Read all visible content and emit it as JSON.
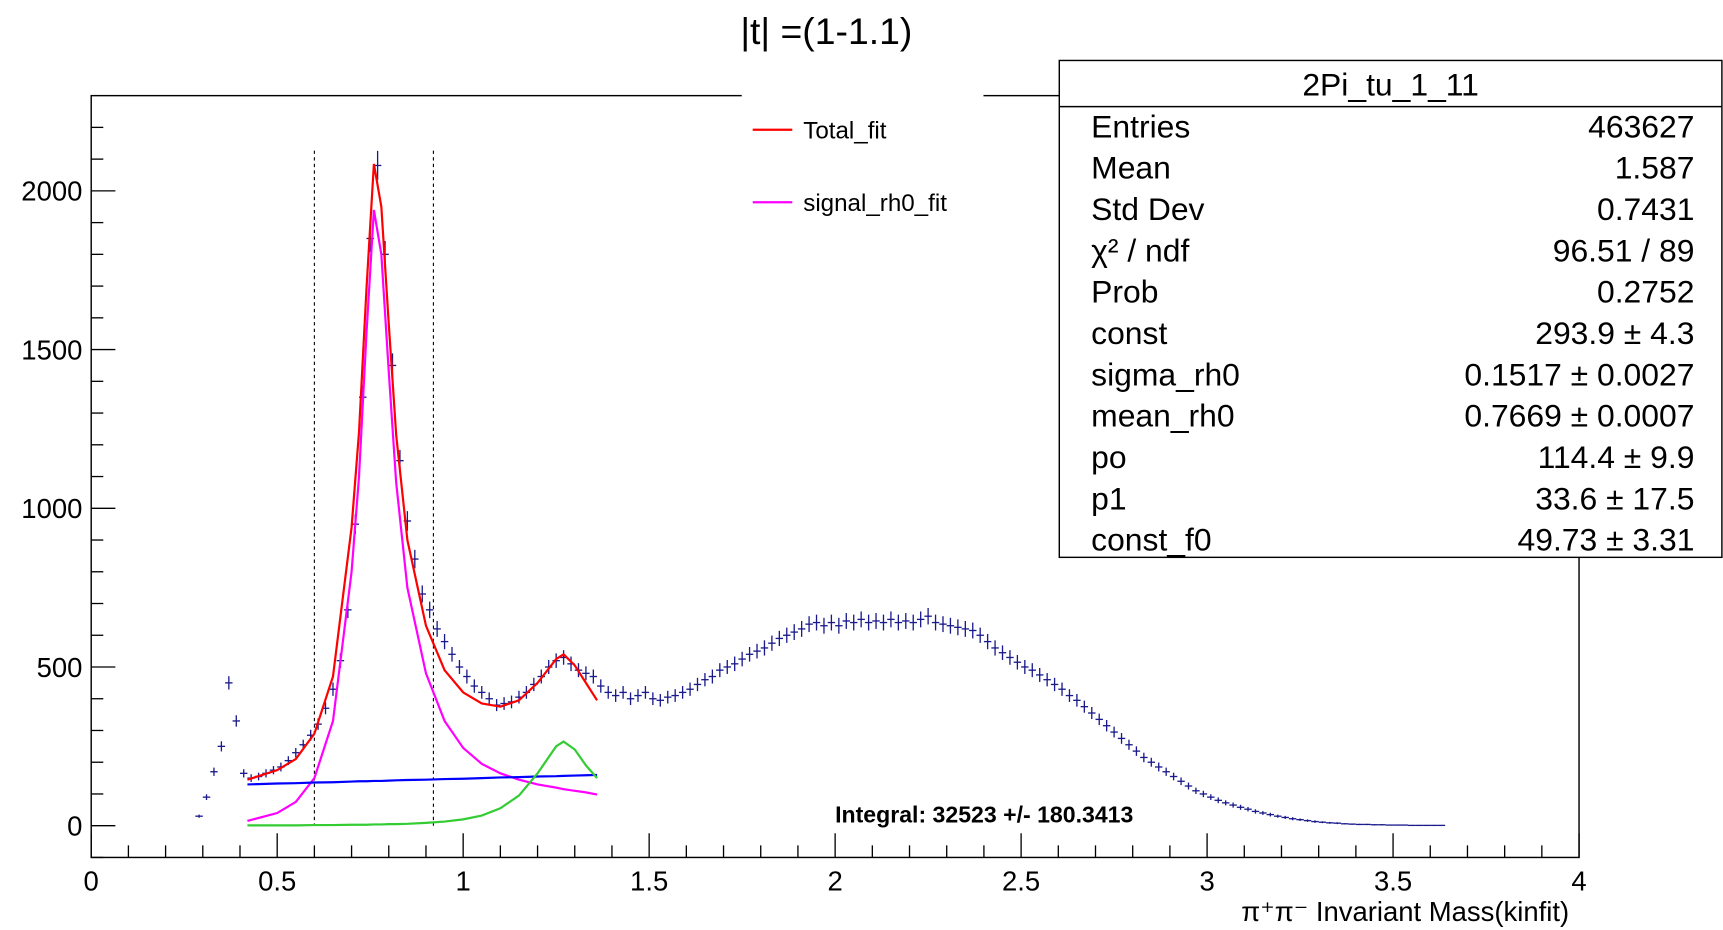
{
  "chart_data": {
    "type": "histogram",
    "title": "|t| =(1-1.1)",
    "xlabel": "π⁺π⁻ Invariant Mass(kinfit)",
    "xlim": [
      0,
      4
    ],
    "ylim": [
      -100,
      2300
    ],
    "xticks": [
      0,
      0.5,
      1,
      1.5,
      2,
      2.5,
      3,
      3.5,
      4
    ],
    "yticks": [
      0,
      500,
      1000,
      1500,
      2000
    ],
    "xminorticks": [
      0.1,
      0.2,
      0.3,
      0.4,
      0.6,
      0.7,
      0.8,
      0.9,
      1.1,
      1.2,
      1.3,
      1.4,
      1.6,
      1.7,
      1.8,
      1.9,
      2.1,
      2.2,
      2.3,
      2.4,
      2.6,
      2.7,
      2.8,
      2.9,
      3.1,
      3.2,
      3.3,
      3.4,
      3.6,
      3.7,
      3.8,
      3.9
    ],
    "yminorticks": [
      -100,
      100,
      200,
      300,
      400,
      600,
      700,
      800,
      900,
      1100,
      1200,
      1300,
      1400,
      1600,
      1700,
      1800,
      1900,
      2100,
      2200
    ],
    "color": "#1a1a8c",
    "bins": [
      0.28,
      0.3,
      0.32,
      0.34,
      0.36,
      0.38,
      0.4,
      0.42,
      0.44,
      0.46,
      0.48,
      0.5,
      0.52,
      0.54,
      0.56,
      0.58,
      0.6,
      0.62,
      0.64,
      0.66,
      0.68,
      0.7,
      0.72,
      0.74,
      0.76,
      0.78,
      0.8,
      0.82,
      0.84,
      0.86,
      0.88,
      0.9,
      0.92,
      0.94,
      0.96,
      0.98,
      1.0,
      1.02,
      1.04,
      1.06,
      1.08,
      1.1,
      1.12,
      1.14,
      1.16,
      1.18,
      1.2,
      1.22,
      1.24,
      1.26,
      1.28,
      1.3,
      1.32,
      1.34,
      1.36,
      1.38,
      1.4,
      1.42,
      1.44,
      1.46,
      1.48,
      1.5,
      1.52,
      1.54,
      1.56,
      1.58,
      1.6,
      1.62,
      1.64,
      1.66,
      1.68,
      1.7,
      1.72,
      1.74,
      1.76,
      1.78,
      1.8,
      1.82,
      1.84,
      1.86,
      1.88,
      1.9,
      1.92,
      1.94,
      1.96,
      1.98,
      2.0,
      2.02,
      2.04,
      2.06,
      2.08,
      2.1,
      2.12,
      2.14,
      2.16,
      2.18,
      2.2,
      2.22,
      2.24,
      2.26,
      2.28,
      2.3,
      2.32,
      2.34,
      2.36,
      2.38,
      2.4,
      2.42,
      2.44,
      2.46,
      2.48,
      2.5,
      2.52,
      2.54,
      2.56,
      2.58,
      2.6,
      2.62,
      2.64,
      2.66,
      2.68,
      2.7,
      2.72,
      2.74,
      2.76,
      2.78,
      2.8,
      2.82,
      2.84,
      2.86,
      2.88,
      2.9,
      2.92,
      2.94,
      2.96,
      2.98,
      3.0,
      3.02,
      3.04,
      3.06,
      3.08,
      3.1,
      3.12,
      3.14,
      3.16,
      3.18,
      3.2,
      3.22,
      3.24,
      3.26,
      3.28,
      3.3,
      3.32,
      3.34,
      3.36,
      3.38,
      3.4,
      3.42,
      3.44,
      3.46,
      3.48,
      3.5,
      3.52,
      3.54,
      3.56,
      3.58,
      3.6,
      3.62,
      3.64
    ],
    "values": [
      30,
      90,
      170,
      250,
      450,
      330,
      165,
      150,
      155,
      165,
      175,
      185,
      205,
      230,
      255,
      285,
      320,
      370,
      430,
      520,
      680,
      950,
      1350,
      1850,
      2080,
      1800,
      1450,
      1150,
      960,
      840,
      730,
      680,
      620,
      580,
      540,
      500,
      470,
      440,
      420,
      400,
      380,
      385,
      390,
      405,
      420,
      445,
      470,
      500,
      520,
      530,
      510,
      490,
      480,
      470,
      440,
      420,
      410,
      420,
      400,
      410,
      420,
      400,
      395,
      405,
      410,
      420,
      430,
      445,
      460,
      470,
      490,
      500,
      510,
      525,
      540,
      550,
      560,
      575,
      590,
      600,
      610,
      620,
      635,
      640,
      630,
      640,
      630,
      645,
      640,
      650,
      640,
      645,
      640,
      650,
      640,
      645,
      640,
      650,
      660,
      640,
      635,
      630,
      625,
      620,
      615,
      600,
      580,
      560,
      545,
      530,
      515,
      500,
      490,
      475,
      460,
      445,
      430,
      410,
      395,
      375,
      355,
      335,
      315,
      295,
      275,
      255,
      235,
      215,
      200,
      185,
      170,
      155,
      140,
      125,
      110,
      100,
      90,
      80,
      72,
      65,
      58,
      52,
      45,
      40,
      35,
      30,
      26,
      22,
      19,
      16,
      13,
      11,
      9,
      8,
      6,
      5,
      4,
      4,
      3,
      3,
      2,
      2,
      2,
      1,
      1,
      1,
      1,
      1
    ],
    "errors": [
      5,
      9,
      13,
      16,
      21,
      18,
      13,
      12,
      12,
      13,
      13,
      14,
      14,
      15,
      16,
      17,
      18,
      19,
      21,
      23,
      26,
      31,
      37,
      43,
      46,
      42,
      38,
      34,
      31,
      29,
      27,
      26,
      25,
      24,
      23,
      22,
      22,
      21,
      20,
      20,
      19,
      20,
      20,
      20,
      20,
      21,
      22,
      22,
      23,
      23,
      23,
      22,
      22,
      22,
      21,
      20,
      20,
      20,
      20,
      20,
      20,
      20,
      20,
      20,
      20,
      20,
      21,
      21,
      21,
      22,
      22,
      22,
      23,
      23,
      23,
      23,
      24,
      24,
      24,
      24,
      25,
      25,
      25,
      25,
      25,
      25,
      25,
      25,
      25,
      25,
      25,
      25,
      25,
      25,
      25,
      25,
      25,
      25,
      26,
      25,
      25,
      25,
      25,
      25,
      25,
      24,
      24,
      24,
      23,
      23,
      23,
      22,
      22,
      22,
      21,
      21,
      21,
      20,
      20,
      19,
      19,
      18,
      18,
      17,
      17,
      16,
      15,
      15,
      14,
      14,
      13,
      12,
      12,
      11,
      10,
      10,
      9,
      9,
      8,
      8,
      8,
      7,
      7,
      6,
      6,
      5,
      5,
      5,
      4,
      4,
      4,
      3,
      3,
      3,
      2,
      2,
      2,
      2,
      2,
      2,
      1,
      1,
      1,
      1,
      1,
      1,
      1,
      1
    ],
    "fits": [
      {
        "name": "Total_fit",
        "color": "#ff0000",
        "x": [
          0.42,
          0.5,
          0.55,
          0.6,
          0.65,
          0.7,
          0.72,
          0.74,
          0.76,
          0.78,
          0.8,
          0.82,
          0.85,
          0.9,
          0.95,
          1.0,
          1.05,
          1.1,
          1.15,
          1.2,
          1.25,
          1.27,
          1.3,
          1.33,
          1.36
        ],
        "values": [
          145,
          175,
          210,
          290,
          470,
          940,
          1240,
          1690,
          2085,
          1950,
          1580,
          1230,
          900,
          630,
          490,
          420,
          385,
          375,
          395,
          450,
          525,
          540,
          505,
          450,
          395
        ]
      },
      {
        "name": "signal_rh0_fit",
        "color": "#ff00ff",
        "x": [
          0.42,
          0.5,
          0.55,
          0.6,
          0.65,
          0.7,
          0.72,
          0.74,
          0.76,
          0.78,
          0.8,
          0.82,
          0.85,
          0.9,
          0.95,
          1.0,
          1.05,
          1.1,
          1.15,
          1.2,
          1.25,
          1.27,
          1.3,
          1.33,
          1.36
        ],
        "values": [
          15,
          40,
          75,
          150,
          330,
          800,
          1100,
          1550,
          1940,
          1800,
          1430,
          1080,
          750,
          480,
          330,
          245,
          195,
          165,
          145,
          130,
          120,
          115,
          110,
          105,
          98
        ]
      },
      {
        "color": "#0000ff",
        "x": [
          0.42,
          0.5,
          0.55,
          0.6,
          0.65,
          0.7,
          0.72,
          0.74,
          0.76,
          0.78,
          0.8,
          0.82,
          0.85,
          0.9,
          0.95,
          1.0,
          1.05,
          1.1,
          1.15,
          1.2,
          1.25,
          1.27,
          1.3,
          1.33,
          1.36
        ],
        "values": [
          130,
          133,
          134,
          136,
          137,
          139,
          140,
          140,
          141,
          141,
          142,
          143,
          144,
          145,
          147,
          148,
          150,
          152,
          153,
          155,
          156,
          157,
          158,
          159,
          160
        ]
      },
      {
        "color": "#33cc33",
        "x": [
          0.42,
          0.5,
          0.55,
          0.6,
          0.65,
          0.7,
          0.72,
          0.74,
          0.76,
          0.78,
          0.8,
          0.82,
          0.85,
          0.9,
          0.95,
          1.0,
          1.05,
          1.1,
          1.15,
          1.2,
          1.25,
          1.27,
          1.3,
          1.33,
          1.36
        ],
        "values": [
          1,
          1,
          1,
          2,
          2,
          3,
          3,
          3,
          4,
          4,
          5,
          5,
          6,
          9,
          13,
          20,
          32,
          55,
          95,
          165,
          250,
          265,
          240,
          190,
          150
        ]
      }
    ],
    "vlines": [
      0.6,
      0.92
    ],
    "annotation": "Integral: 32523 +/- 180.3413",
    "stats_box": {
      "title": "2Pi_tu_1_11",
      "rows": [
        [
          "Entries",
          "463627"
        ],
        [
          "Mean",
          "1.587"
        ],
        [
          "Std Dev",
          "0.7431"
        ],
        [
          "χ² / ndf",
          "96.51 / 89"
        ],
        [
          "Prob",
          "0.2752"
        ],
        [
          "const",
          "293.9 ± 4.3"
        ],
        [
          "sigma_rh0",
          "0.1517 ± 0.0027"
        ],
        [
          "mean_rh0",
          "0.7669 ± 0.0007"
        ],
        [
          "po",
          "114.4 ± 9.9"
        ],
        [
          "p1",
          "33.6 ± 17.5"
        ],
        [
          "const_f0",
          "49.73 ± 3.31"
        ]
      ]
    }
  }
}
